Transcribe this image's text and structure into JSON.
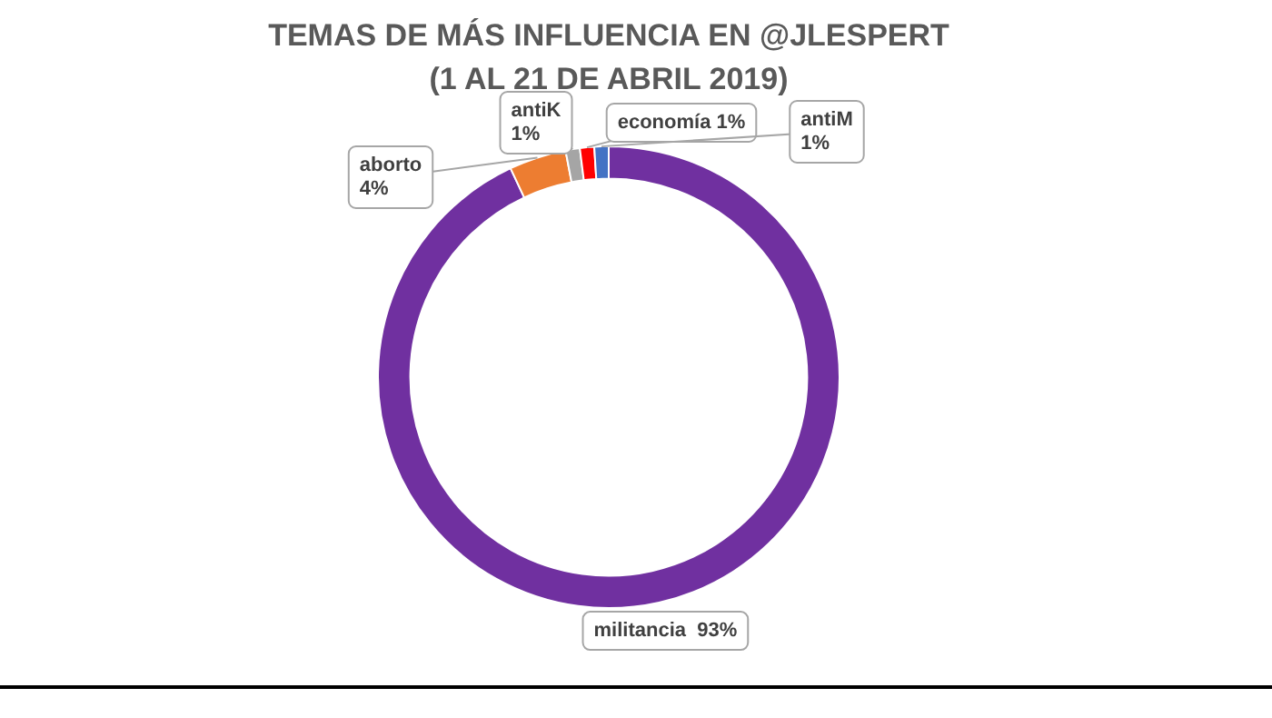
{
  "chart_data": {
    "type": "donut",
    "title": "TEMAS DE MÁS INFLUENCIA EN @JLESPERT",
    "subtitle": "(1 AL 21 DE ABRIL 2019)",
    "categories": [
      "militancia",
      "aborto",
      "antiK",
      "economía",
      "antiM"
    ],
    "values": [
      93,
      4,
      1,
      1,
      1
    ],
    "colors": [
      "#7030a0",
      "#ed7d31",
      "#a5a5a5",
      "#ff0000",
      "#4472c4"
    ],
    "value_labels": [
      "93%",
      "4%",
      "1%",
      "1%",
      "1%"
    ],
    "legend": false
  }
}
